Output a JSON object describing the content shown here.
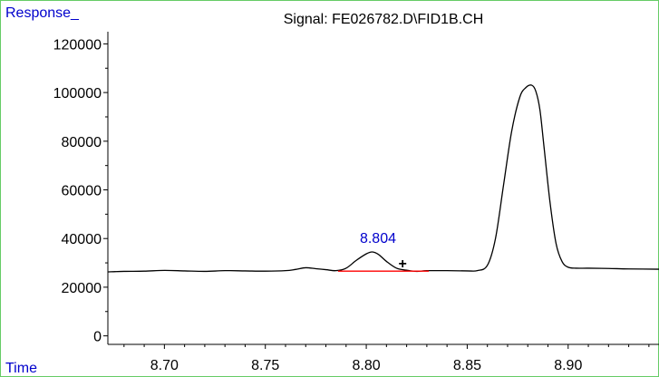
{
  "chart_data": {
    "type": "line",
    "title": "Signal: FE026782.D\\FID1B.CH",
    "ylabel": "Response_",
    "xlabel": "Time",
    "xlim": [
      8.672,
      8.945
    ],
    "ylim": [
      -3500,
      125000
    ],
    "xticks": [
      8.7,
      8.75,
      8.8,
      8.85,
      8.9
    ],
    "xtick_labels": [
      "8.70",
      "8.75",
      "8.80",
      "8.85",
      "8.90"
    ],
    "yticks": [
      0,
      20000,
      40000,
      60000,
      80000,
      100000,
      120000
    ],
    "ytick_labels": [
      "0",
      "20000",
      "40000",
      "60000",
      "80000",
      "100000",
      "120000"
    ],
    "series": [
      {
        "x": [
          8.672,
          8.68,
          8.69,
          8.7,
          8.71,
          8.72,
          8.73,
          8.74,
          8.75,
          8.76,
          8.765,
          8.77,
          8.775,
          8.78,
          8.785,
          8.79,
          8.795,
          8.8,
          8.803,
          8.806,
          8.81,
          8.815,
          8.82,
          8.825,
          8.83,
          8.84,
          8.85,
          8.855,
          8.86,
          8.864,
          8.868,
          8.872,
          8.876,
          8.879,
          8.882,
          8.884,
          8.886,
          8.888,
          8.891,
          8.894,
          8.897,
          8.9,
          8.904,
          8.91,
          8.92,
          8.93,
          8.945
        ],
        "y": [
          26300,
          26500,
          26600,
          26900,
          26700,
          26500,
          26800,
          26700,
          26600,
          26800,
          27300,
          28000,
          27600,
          27200,
          26800,
          27800,
          31000,
          33700,
          34500,
          33500,
          30600,
          27800,
          27000,
          26500,
          26800,
          26800,
          26700,
          26800,
          29000,
          40000,
          62000,
          84000,
          98000,
          102000,
          103000,
          100500,
          93000,
          78000,
          55000,
          38000,
          30500,
          28200,
          27800,
          27800,
          27700,
          27500,
          27400
        ]
      }
    ],
    "baseline": {
      "x": [
        8.786,
        8.831
      ],
      "y": [
        26600,
        26600
      ],
      "color": "#ff0000"
    },
    "peak_label": {
      "text": "8.804",
      "x": 8.804,
      "y": 34500,
      "color": "#0000cc"
    },
    "marker": {
      "symbol": "+",
      "x": 8.818,
      "y": 30000
    },
    "line_color": "#000000",
    "label_color": "#0000cc",
    "frame_color": "#66cc66",
    "grid": false
  }
}
